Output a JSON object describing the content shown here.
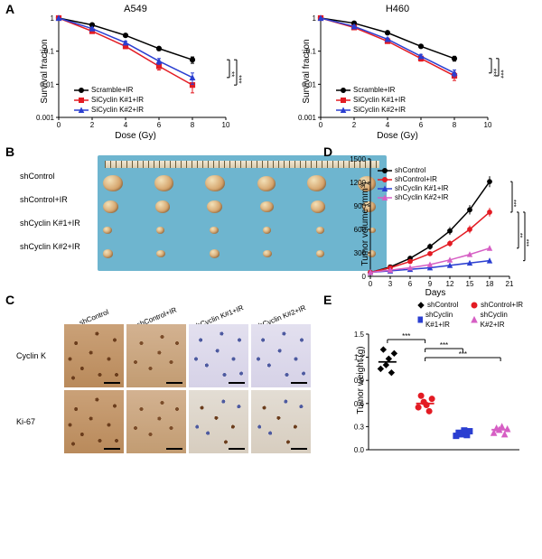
{
  "colors": {
    "black": "#000000",
    "red": "#e31b23",
    "blue": "#2b3fd1",
    "magenta": "#d65fc4",
    "bg": "#ffffff",
    "petri_bg": "#6eb5cf"
  },
  "panelA": {
    "label": "A",
    "charts": [
      {
        "title": "A549",
        "ylabel": "Survival fraction",
        "xlabel": "Dose (Gy)",
        "yscale": "log",
        "ylim": [
          0.001,
          1
        ],
        "yticks": [
          0.001,
          0.01,
          0.1,
          1
        ],
        "xlim": [
          0,
          10
        ],
        "xticks": [
          0,
          2,
          4,
          6,
          8,
          10
        ],
        "series": [
          {
            "name": "Scramble+IR",
            "color": "#000000",
            "marker": "circle",
            "x": [
              0,
              2,
              4,
              6,
              8
            ],
            "y": [
              1,
              0.62,
              0.3,
              0.12,
              0.055
            ],
            "err": [
              0,
              0.04,
              0.03,
              0.015,
              0.012
            ]
          },
          {
            "name": "SiCyclin K#1+IR",
            "color": "#e31b23",
            "marker": "square",
            "x": [
              0,
              2,
              4,
              6,
              8
            ],
            "y": [
              1,
              0.4,
              0.14,
              0.035,
              0.0095
            ],
            "err": [
              0,
              0.05,
              0.02,
              0.008,
              0.004
            ]
          },
          {
            "name": "SiCyclin K#2+IR",
            "color": "#2b3fd1",
            "marker": "triangle",
            "x": [
              0,
              2,
              4,
              6,
              8
            ],
            "y": [
              1,
              0.48,
              0.18,
              0.05,
              0.016
            ],
            "err": [
              0,
              0.04,
              0.02,
              0.01,
              0.006
            ]
          }
        ],
        "significance": [
          {
            "between": [
              "Scramble+IR",
              "SiCyclin K#2+IR"
            ],
            "label": "**"
          },
          {
            "between": [
              "Scramble+IR",
              "SiCyclin K#1+IR"
            ],
            "label": "***"
          }
        ]
      },
      {
        "title": "H460",
        "ylabel": "Survival fraction",
        "xlabel": "Dose (Gy)",
        "yscale": "log",
        "ylim": [
          0.001,
          1
        ],
        "yticks": [
          0.001,
          0.01,
          0.1,
          1
        ],
        "xlim": [
          0,
          10
        ],
        "xticks": [
          0,
          2,
          4,
          6,
          8,
          10
        ],
        "series": [
          {
            "name": "Scramble+IR",
            "color": "#000000",
            "marker": "circle",
            "x": [
              0,
              2,
              4,
              6,
              8
            ],
            "y": [
              1,
              0.7,
              0.36,
              0.14,
              0.06
            ],
            "err": [
              0,
              0.04,
              0.03,
              0.015,
              0.01
            ]
          },
          {
            "name": "SiCyclin K#1+IR",
            "color": "#e31b23",
            "marker": "square",
            "x": [
              0,
              2,
              4,
              6,
              8
            ],
            "y": [
              1,
              0.52,
              0.2,
              0.06,
              0.018
            ],
            "err": [
              0,
              0.04,
              0.02,
              0.01,
              0.005
            ]
          },
          {
            "name": "SiCyclin K#2+IR",
            "color": "#2b3fd1",
            "marker": "triangle",
            "x": [
              0,
              2,
              4,
              6,
              8
            ],
            "y": [
              1,
              0.56,
              0.23,
              0.07,
              0.022
            ],
            "err": [
              0,
              0.04,
              0.02,
              0.01,
              0.005
            ]
          }
        ],
        "significance": [
          {
            "between": [
              "Scramble+IR",
              "SiCyclin K#2+IR"
            ],
            "label": "***"
          },
          {
            "between": [
              "Scramble+IR",
              "SiCyclin K#1+IR"
            ],
            "label": "***"
          }
        ]
      }
    ]
  },
  "panelB": {
    "label": "B",
    "rows": [
      {
        "label": "shControl",
        "sizes": [
          22,
          21,
          22,
          20,
          21,
          20
        ]
      },
      {
        "label": "shControl+IR",
        "sizes": [
          17,
          16,
          17,
          15,
          16,
          15
        ]
      },
      {
        "label": "shCyclin K#1+IR",
        "sizes": [
          10,
          9,
          10,
          9,
          9,
          8
        ]
      },
      {
        "label": "shCyclin K#2+IR",
        "sizes": [
          11,
          10,
          11,
          10,
          9,
          9
        ]
      }
    ],
    "n_per_row": 6
  },
  "panelC": {
    "label": "C",
    "col_labels": [
      "shControl",
      "shControl+IR",
      "shCyclin K#1+IR",
      "shCyclin K#2+IR"
    ],
    "row_labels": [
      "Cyclin K",
      "Ki-67"
    ],
    "styles": [
      [
        "ihc-brown-hi",
        "ihc-brown-mid",
        "ihc-blue",
        "ihc-blue"
      ],
      [
        "ihc-brown-hi",
        "ihc-brown-mid",
        "ihc-blue-brown",
        "ihc-blue-brown"
      ]
    ]
  },
  "panelD": {
    "label": "D",
    "ylabel": "Tumor volume (mm³)",
    "xlabel": "Days",
    "type": "line",
    "xlim": [
      0,
      21
    ],
    "xticks": [
      0,
      3,
      6,
      9,
      12,
      15,
      18,
      21
    ],
    "ylim": [
      0,
      1500
    ],
    "yticks": [
      0,
      300,
      600,
      900,
      1200,
      1500
    ],
    "series": [
      {
        "name": "shControl",
        "color": "#000000",
        "marker": "circle",
        "x": [
          0,
          3,
          6,
          9,
          12,
          15,
          18
        ],
        "y": [
          50,
          120,
          230,
          380,
          580,
          850,
          1210
        ],
        "err": [
          10,
          20,
          30,
          40,
          50,
          60,
          70
        ]
      },
      {
        "name": "shControl+IR",
        "color": "#e31b23",
        "marker": "circle",
        "x": [
          0,
          3,
          6,
          9,
          12,
          15,
          18
        ],
        "y": [
          50,
          110,
          190,
          290,
          420,
          600,
          820
        ],
        "err": [
          10,
          18,
          25,
          30,
          40,
          50,
          55
        ]
      },
      {
        "name": "shCyclin K#1+IR",
        "color": "#2b3fd1",
        "marker": "triangle",
        "x": [
          0,
          3,
          6,
          9,
          12,
          15,
          18
        ],
        "y": [
          50,
          70,
          90,
          110,
          140,
          170,
          200
        ],
        "err": [
          8,
          10,
          12,
          15,
          18,
          20,
          22
        ]
      },
      {
        "name": "shCyclin K#2+IR",
        "color": "#d65fc4",
        "marker": "triangle",
        "x": [
          0,
          3,
          6,
          9,
          12,
          15,
          18
        ],
        "y": [
          50,
          80,
          110,
          150,
          210,
          280,
          360
        ],
        "err": [
          8,
          12,
          16,
          20,
          24,
          28,
          32
        ]
      }
    ],
    "significance": [
      {
        "between": [
          "shControl",
          "shControl+IR"
        ],
        "label": "***"
      },
      {
        "between": [
          "shControl+IR",
          "shCyclin K#2+IR"
        ],
        "label": "**"
      },
      {
        "between": [
          "shControl+IR",
          "shCyclin K#1+IR"
        ],
        "label": "***"
      }
    ]
  },
  "panelE": {
    "label": "E",
    "ylabel": "Tumor weight (g)",
    "type": "scatter",
    "ylim": [
      0,
      1.5
    ],
    "yticks": [
      0,
      0.3,
      0.6,
      0.9,
      1.2,
      1.5
    ],
    "categories": [
      {
        "name": "shControl",
        "color": "#000000",
        "marker": "diamond",
        "values": [
          1.05,
          1.3,
          1.1,
          1.18,
          1.0,
          1.25
        ],
        "median": 1.14
      },
      {
        "name": "shControl+IR",
        "color": "#e31b23",
        "marker": "circle",
        "values": [
          0.55,
          0.7,
          0.62,
          0.58,
          0.5,
          0.66
        ],
        "median": 0.6
      },
      {
        "name": "shCyclin K#1+IR",
        "color": "#2b3fd1",
        "marker": "square",
        "values": [
          0.18,
          0.22,
          0.2,
          0.25,
          0.19,
          0.24
        ],
        "median": 0.21
      },
      {
        "name": "shCyclin K#2+IR",
        "color": "#d65fc4",
        "marker": "triangle",
        "values": [
          0.22,
          0.28,
          0.26,
          0.3,
          0.2,
          0.27
        ],
        "median": 0.26
      }
    ],
    "significance": [
      {
        "between": [
          "shControl",
          "shControl+IR"
        ],
        "label": "***"
      },
      {
        "between": [
          "shControl+IR",
          "shCyclin K#1+IR"
        ],
        "label": "***"
      },
      {
        "between": [
          "shControl+IR",
          "shCyclin K#2+IR"
        ],
        "label": "***"
      }
    ]
  }
}
